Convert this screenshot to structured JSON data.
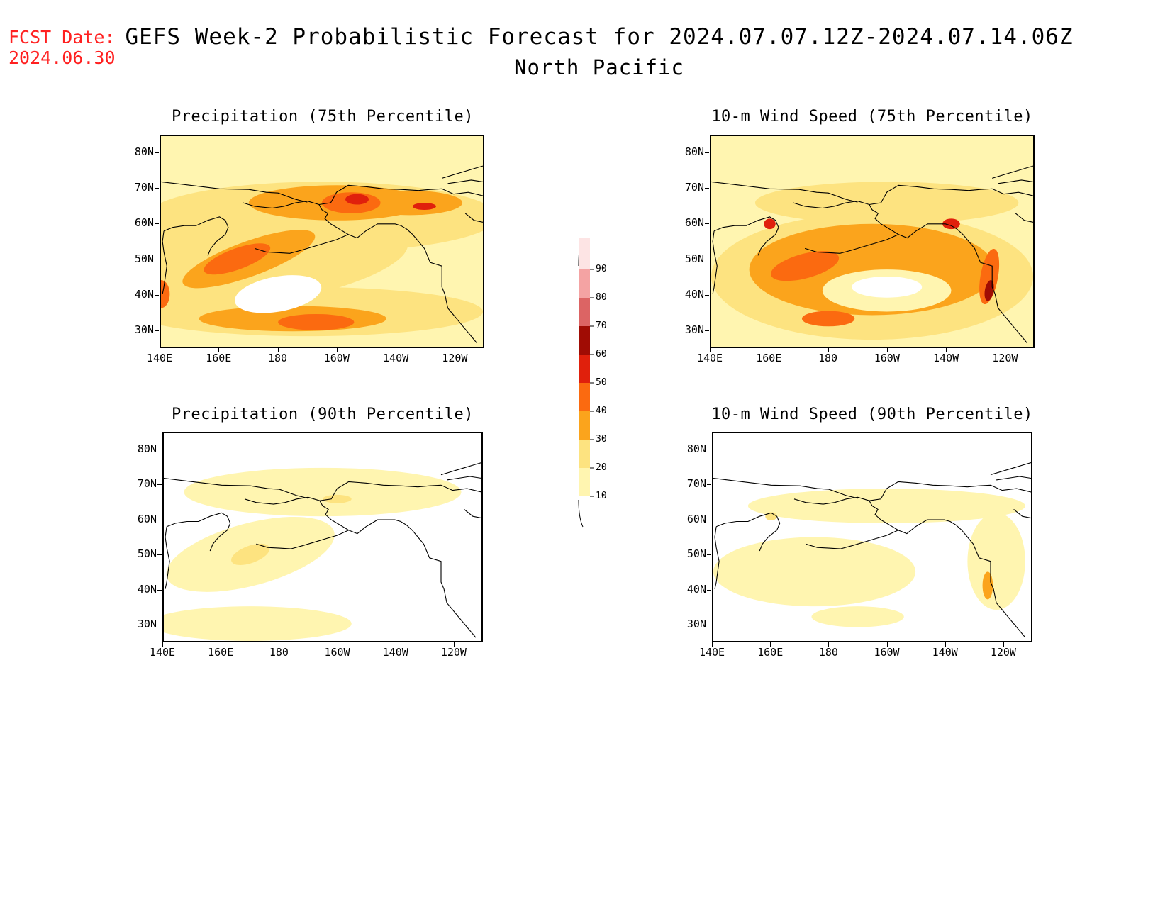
{
  "header": {
    "fcst_label": "FCST Date:",
    "fcst_date": "2024.06.30",
    "title": "GEFS Week-2 Probabilistic Forecast for 2024.07.07.12Z-2024.07.14.06Z",
    "subtitle": "North Pacific"
  },
  "colors": {
    "c10": "#fff5b0",
    "c20": "#fde380",
    "c30": "#fba41c",
    "c40": "#fb6a10",
    "c50": "#e0200c",
    "c60": "#a00c04",
    "c70": "#dc6464",
    "c80": "#f4a3a3",
    "c90": "#fde4e4"
  },
  "colorbar": {
    "levels": [
      "10",
      "20",
      "30",
      "40",
      "50",
      "60",
      "70",
      "80",
      "90"
    ]
  },
  "axes": {
    "lat_labels": [
      "80N",
      "70N",
      "60N",
      "50N",
      "40N",
      "30N"
    ],
    "lon_labels": [
      "140E",
      "160E",
      "180",
      "160W",
      "140W",
      "120W"
    ]
  },
  "panels": [
    {
      "id": "precip75",
      "title": "Precipitation (75th Percentile)"
    },
    {
      "id": "wind75",
      "title": "10-m Wind Speed (75th Percentile)"
    },
    {
      "id": "precip90",
      "title": "Precipitation (90th Percentile)"
    },
    {
      "id": "wind90",
      "title": "10-m Wind Speed (90th Percentile)"
    }
  ]
}
